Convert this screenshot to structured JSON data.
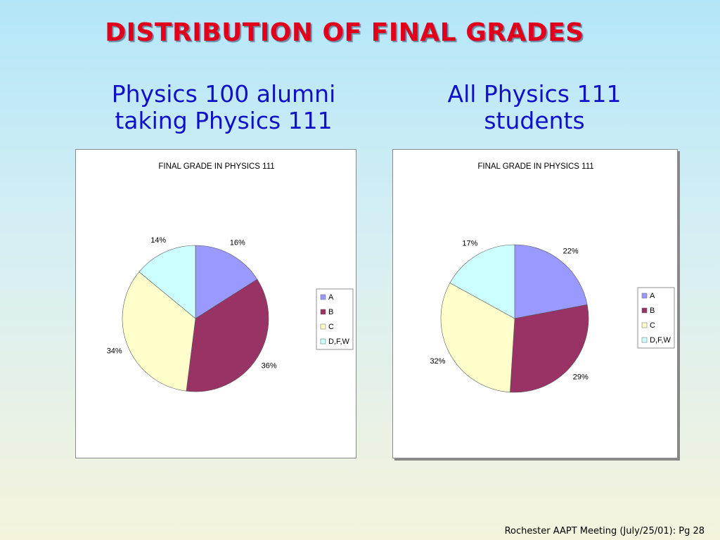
{
  "slide": {
    "title": "DISTRIBUTION OF FINAL GRADES",
    "footer": "Rochester AAPT Meeting (July/25/01): Pg 28"
  },
  "left_subtitle": [
    "Physics 100 alumni",
    "taking Physics 111"
  ],
  "right_subtitle": [
    "All  Physics 111",
    "students"
  ],
  "colors": {
    "A": "#9999ff",
    "B": "#993366",
    "C": "#ffffcc",
    "DFW": "#ccffff"
  },
  "chart_data": [
    {
      "type": "pie",
      "title": "FINAL GRADE IN PHYSICS 111",
      "categories": [
        "A",
        "B",
        "C",
        "D,F,W"
      ],
      "values": [
        16,
        36,
        34,
        14
      ],
      "labels": [
        "16%",
        "36%",
        "34%",
        "14%"
      ],
      "legend": "right"
    },
    {
      "type": "pie",
      "title": "FINAL GRADE IN PHYSICS 111",
      "categories": [
        "A",
        "B",
        "C",
        "D,F,W"
      ],
      "values": [
        22,
        29,
        32,
        17
      ],
      "labels": [
        "22%",
        "29%",
        "32%",
        "17%"
      ],
      "legend": "right"
    }
  ]
}
